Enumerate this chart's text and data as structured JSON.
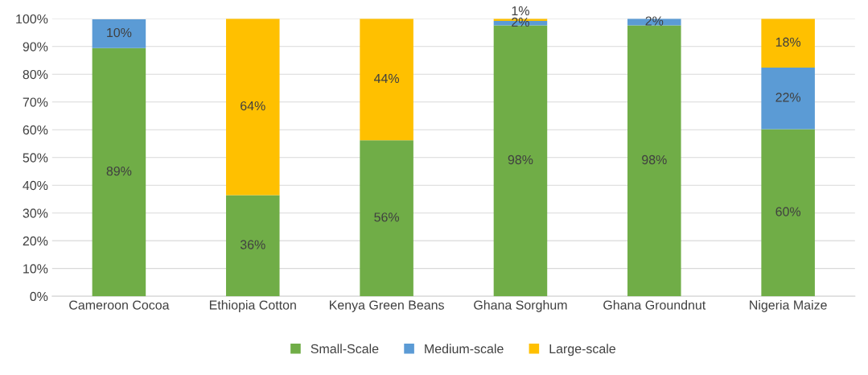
{
  "chart_data": {
    "type": "bar",
    "stacked": true,
    "categories": [
      "Cameroon Cocoa",
      "Ethiopia Cotton",
      "Kenya Green Beans",
      "Ghana Sorghum",
      "Ghana Groundnut",
      "Nigeria Maize"
    ],
    "series": [
      {
        "name": "Small-Scale",
        "color": "#70ad47",
        "values": [
          89.4,
          36.4,
          56.2,
          97.6,
          97.6,
          60.2
        ],
        "value_labels": [
          "89%",
          "36%",
          "56%",
          "98%",
          "98%",
          "60%"
        ]
      },
      {
        "name": "Medium-scale",
        "color": "#5b9bd5",
        "values": [
          10.4,
          null,
          null,
          1.6,
          2.4,
          22.2
        ],
        "value_labels": [
          "10%",
          null,
          null,
          "2%",
          "2%",
          "22%"
        ]
      },
      {
        "name": "Large-scale",
        "color": "#ffc000",
        "values": [
          null,
          63.6,
          43.8,
          0.8,
          null,
          17.6
        ],
        "value_labels": [
          null,
          "64%",
          "44%",
          "1%",
          null,
          "18%"
        ]
      }
    ],
    "ylim": [
      0,
      100
    ],
    "yticks": [
      {
        "value": 0,
        "label": "0%"
      },
      {
        "value": 10,
        "label": "10%"
      },
      {
        "value": 20,
        "label": "20%"
      },
      {
        "value": 30,
        "label": "30%"
      },
      {
        "value": 40,
        "label": "40%"
      },
      {
        "value": 50,
        "label": "50%"
      },
      {
        "value": 60,
        "label": "60%"
      },
      {
        "value": 70,
        "label": "70%"
      },
      {
        "value": 80,
        "label": "80%"
      },
      {
        "value": 90,
        "label": "90%"
      },
      {
        "value": 100,
        "label": "100%"
      }
    ],
    "grid": "y",
    "legend": "bottom"
  }
}
